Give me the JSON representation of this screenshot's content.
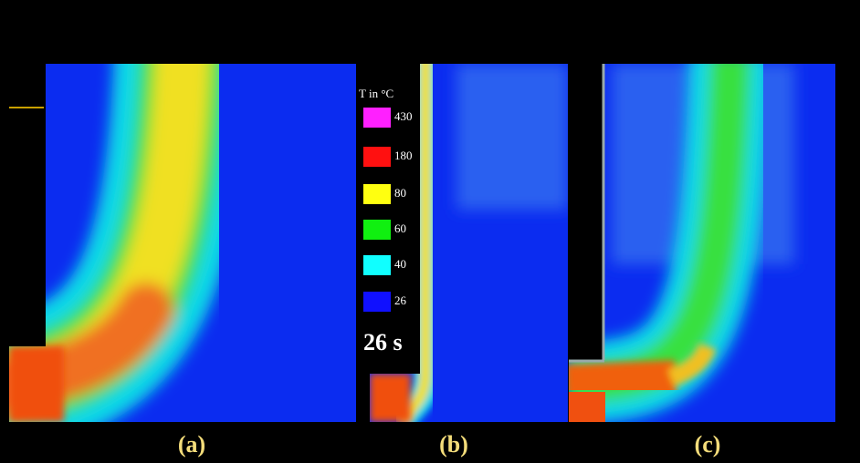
{
  "legend": {
    "title": "T in °C",
    "items": [
      "430",
      "180",
      "80",
      "60",
      "40",
      "26"
    ]
  },
  "time": "26 s",
  "panels": [
    "(a)",
    "(b)",
    "(c)"
  ]
}
